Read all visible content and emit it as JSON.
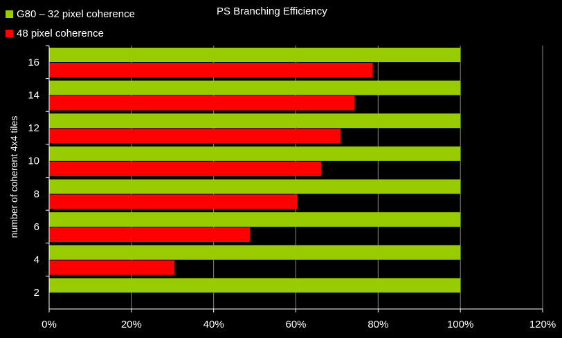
{
  "chart_data": {
    "type": "bar",
    "orientation": "horizontal",
    "title": "PS Branching Efficiency",
    "xlabel": "",
    "ylabel": "number of coherent 4x4 tiles",
    "categories": [
      "2",
      "4",
      "6",
      "8",
      "10",
      "12",
      "14",
      "16"
    ],
    "series": [
      {
        "name": "G80 – 32 pixel coherence",
        "color": "#99cc00",
        "values": [
          100,
          100,
          100,
          100,
          100,
          100,
          100,
          100
        ]
      },
      {
        "name": "48 pixel coherence",
        "color": "#ff0000",
        "values": [
          null,
          30.5,
          48.8,
          60.4,
          66.2,
          70.9,
          74.3,
          78.7
        ]
      }
    ],
    "xlim": [
      0,
      120
    ],
    "xticks": [
      "0%",
      "20%",
      "40%",
      "60%",
      "80%",
      "100%",
      "120%"
    ],
    "grid": "vertical",
    "legend_position": "top-left",
    "background": "#000000"
  }
}
